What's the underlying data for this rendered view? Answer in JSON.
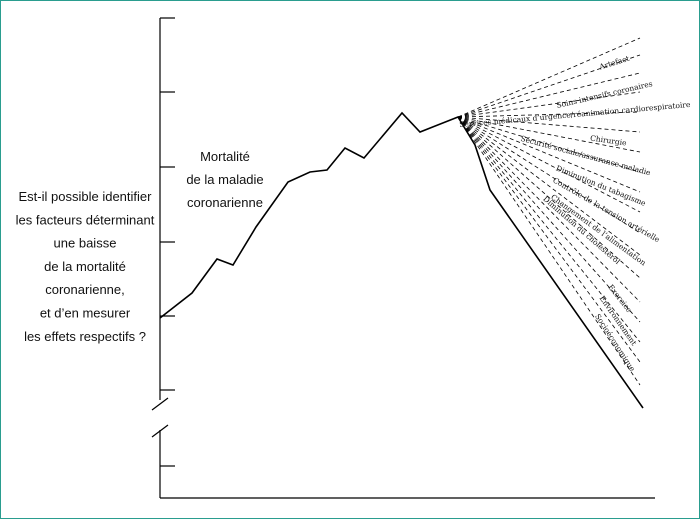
{
  "mortality_label": [
    "Mortalité",
    "de la maladie",
    "coronarienne"
  ],
  "question": [
    "Est-il possible identifier",
    "les facteurs déterminant",
    "une baisse",
    "de la mortalité",
    "coronarienne,",
    "et d’en mesurer",
    "les effets respectifs ?"
  ],
  "factors": [
    "Artefact",
    "Soins intensifs coronaires",
    "Services médicaux d’urgence/réanimation cardiorespiratoire",
    "Chirurgie",
    "Sécurité sociale/assurance maladie",
    "Diminution du tabagisme",
    "Contrôle de la tension artérielle",
    "Changement de l’alimentation",
    "Diminution du cholestérol",
    "Exercice",
    "Environnement",
    "Socioéconomique"
  ]
}
